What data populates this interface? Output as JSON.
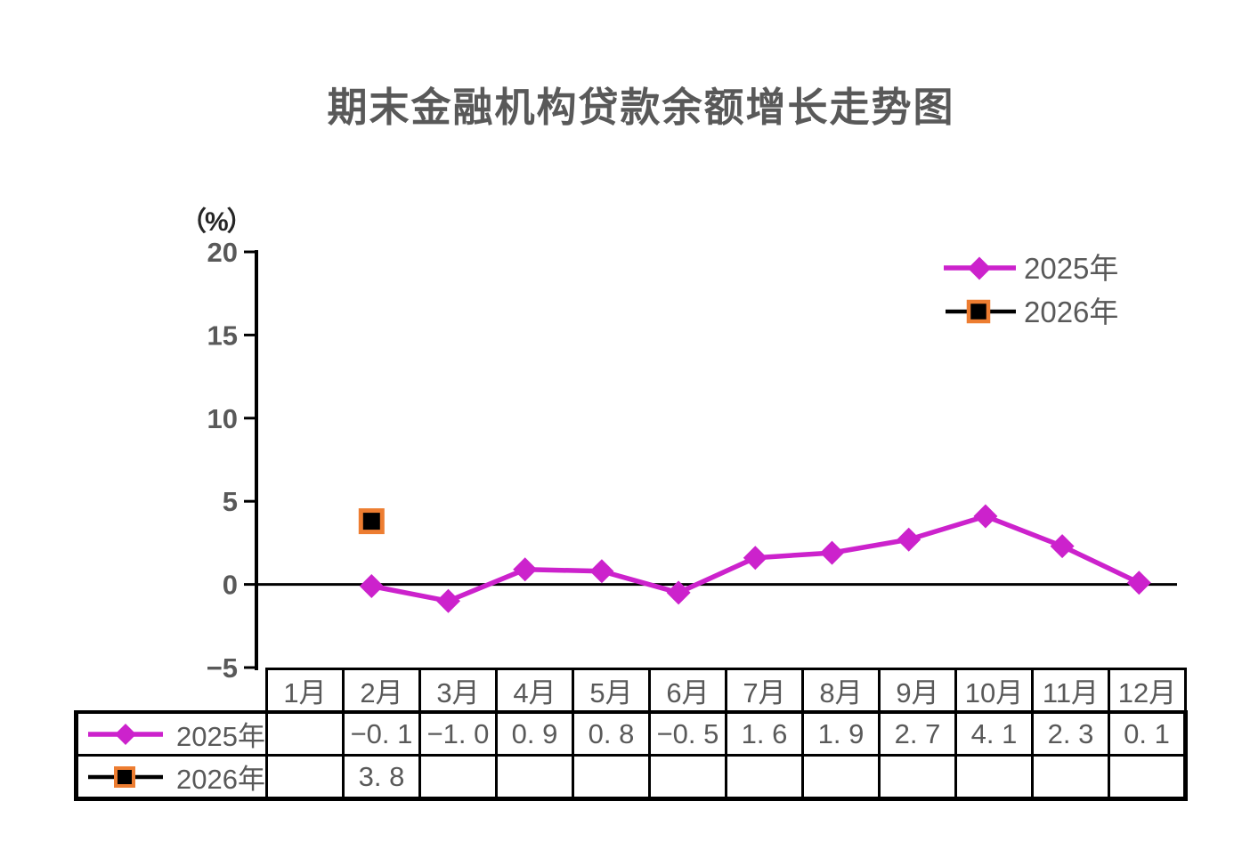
{
  "title": "期末金融机构贷款余额增长走势图",
  "y_axis": {
    "unit_label": "（%）",
    "tick_labels": [
      "20",
      "15",
      "10",
      "5",
      "0",
      "−5"
    ]
  },
  "legend": {
    "items": [
      {
        "label": "2025年",
        "color": "#CC22CC",
        "marker": "diamond"
      },
      {
        "label": "2026年",
        "color": "#000000",
        "marker": "square",
        "marker_border": "#ED7D31"
      }
    ]
  },
  "table": {
    "month_headers": [
      "1月",
      "2月",
      "3月",
      "4月",
      "5月",
      "6月",
      "7月",
      "8月",
      "9月",
      "10月",
      "11月",
      "12月"
    ],
    "rows": [
      {
        "label": "2025年",
        "cells": [
          "",
          "−0. 1",
          "−1. 0",
          "0. 9",
          "0. 8",
          "−0. 5",
          "1. 6",
          "1. 9",
          "2. 7",
          "4. 1",
          "2. 3",
          "0. 1"
        ]
      },
      {
        "label": "2026年",
        "cells": [
          "",
          "3. 8",
          "",
          "",
          "",
          "",
          "",
          "",
          "",
          "",
          "",
          ""
        ]
      }
    ]
  },
  "colors": {
    "text_gray": "#595959",
    "axis": "#000000",
    "series_2025": "#CC22CC",
    "series_2026": "#000000",
    "marker_border_2026": "#ED7D31",
    "background": "#ffffff"
  },
  "chart_data": {
    "type": "line",
    "title": "期末金融机构贷款余额增长走势图",
    "xlabel": "",
    "ylabel": "（%）",
    "ylim": [
      -5,
      20
    ],
    "yticks": [
      20,
      15,
      10,
      5,
      0,
      -5
    ],
    "grid": false,
    "legend_position": "top-right",
    "categories": [
      "1月",
      "2月",
      "3月",
      "4月",
      "5月",
      "6月",
      "7月",
      "8月",
      "9月",
      "10月",
      "11月",
      "12月"
    ],
    "series": [
      {
        "name": "2025年",
        "color": "#CC22CC",
        "marker": "diamond",
        "values": [
          null,
          -0.1,
          -1.0,
          0.9,
          0.8,
          -0.5,
          1.6,
          1.9,
          2.7,
          4.1,
          2.3,
          0.1
        ]
      },
      {
        "name": "2026年",
        "color": "#000000",
        "marker": "square",
        "marker_border": "#ED7D31",
        "values": [
          null,
          3.8,
          null,
          null,
          null,
          null,
          null,
          null,
          null,
          null,
          null,
          null
        ]
      }
    ]
  }
}
